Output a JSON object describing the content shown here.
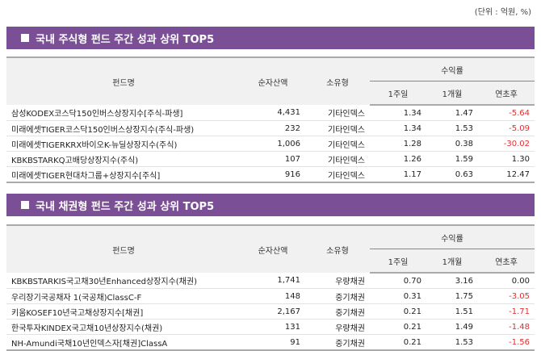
{
  "unit": "(단위 : 억원, %)",
  "headers": {
    "name": "펀드명",
    "aum": "순자산액",
    "type": "소유형",
    "returns": "수익률",
    "w1": "1주일",
    "m1": "1개월",
    "ytd": "연초후"
  },
  "colors": {
    "bar": "#7b4f96",
    "negative": "#e03030"
  },
  "sections": [
    {
      "title": "국내 주식형 펀드 주간 성과 상위 TOP5",
      "rows": [
        {
          "name": "삼성KODEX코스닥150인버스상장지수[주식-파생]",
          "aum": "4,431",
          "type": "기타인덱스",
          "w1": "1.34",
          "m1": "1.47",
          "ytd": "-5.64"
        },
        {
          "name": "미래에셋TIGER코스닥150인버스상장지수(주식-파생)",
          "aum": "232",
          "type": "기타인덱스",
          "w1": "1.34",
          "m1": "1.53",
          "ytd": "-5.09"
        },
        {
          "name": "미래에셋TIGERKRX바이오K-뉴딜상장지수(주식)",
          "aum": "1,006",
          "type": "기타인덱스",
          "w1": "1.28",
          "m1": "0.38",
          "ytd": "-30.02"
        },
        {
          "name": "KBKBSTARKQ고배당상장지수(주식)",
          "aum": "107",
          "type": "기타인덱스",
          "w1": "1.26",
          "m1": "1.59",
          "ytd": "1.30"
        },
        {
          "name": "미래에셋TIGER현대차그룹+상장지수[주식]",
          "aum": "916",
          "type": "기타인덱스",
          "w1": "1.17",
          "m1": "0.63",
          "ytd": "12.47"
        }
      ]
    },
    {
      "title": "국내 채권형 펀드 주간 성과 상위 TOP5",
      "rows": [
        {
          "name": "KBKBSTARKIS국고채30년Enhanced상장지수(채권)",
          "aum": "1,741",
          "type": "우량채권",
          "w1": "0.70",
          "m1": "3.16",
          "ytd": "0.00"
        },
        {
          "name": "우리장기국공채자 1(국공채)ClassC-F",
          "aum": "148",
          "type": "중기채권",
          "w1": "0.31",
          "m1": "1.75",
          "ytd": "-3.05"
        },
        {
          "name": "키움KOSEF10년국고채상장지수[채권]",
          "aum": "2,167",
          "type": "중기채권",
          "w1": "0.21",
          "m1": "1.51",
          "ytd": "-1.71"
        },
        {
          "name": "한국투자KINDEX국고채10년상장지수(채권)",
          "aum": "131",
          "type": "우량채권",
          "w1": "0.21",
          "m1": "1.49",
          "ytd": "-1.48"
        },
        {
          "name": "NH-Amundi국채10년인덱스자[채권]ClassA",
          "aum": "91",
          "type": "중기채권",
          "w1": "0.21",
          "m1": "1.53",
          "ytd": "-1.56"
        }
      ]
    }
  ]
}
